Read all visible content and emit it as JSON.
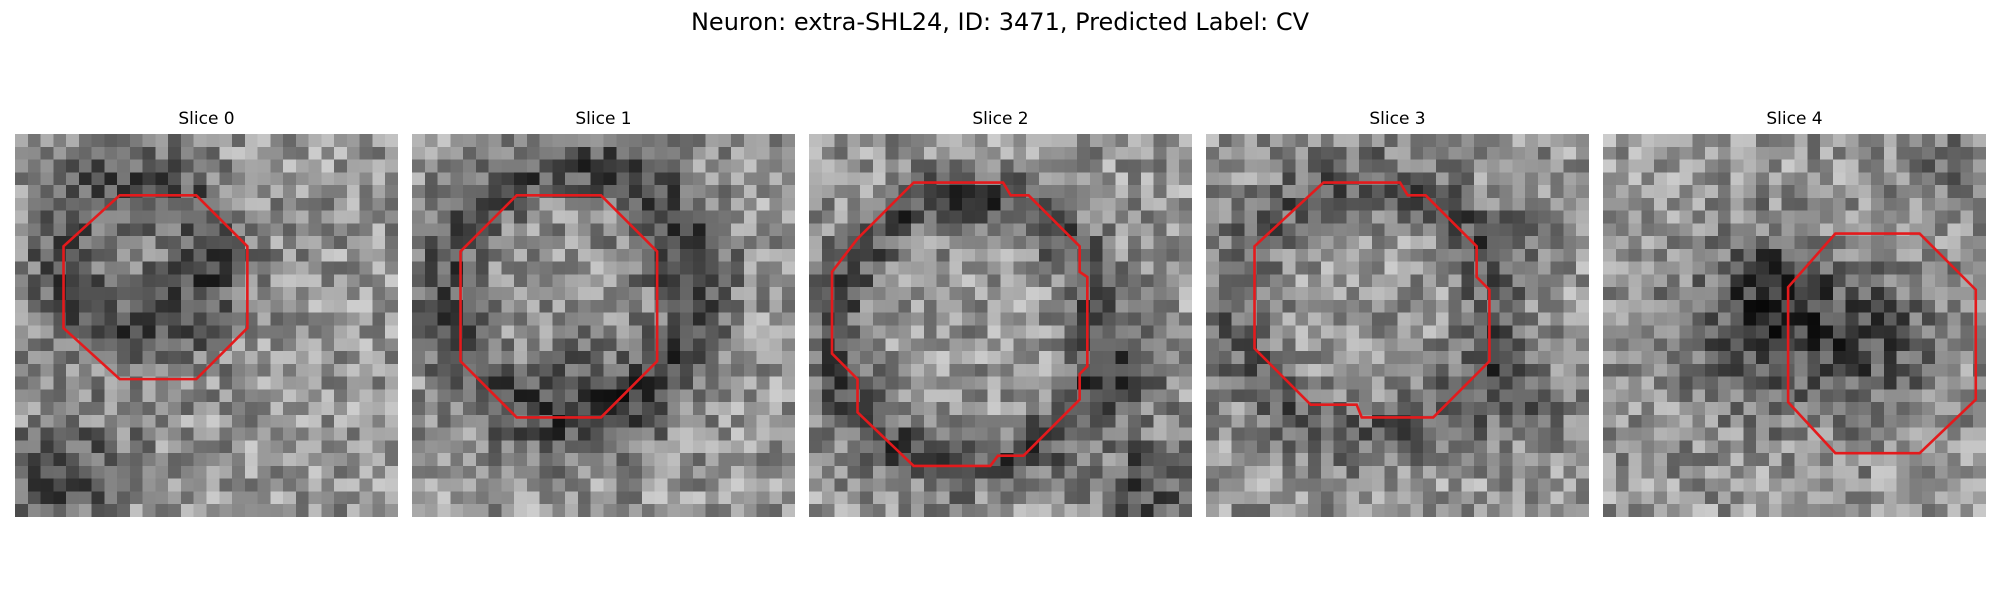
{
  "figure": {
    "title": "Neuron: extra-SHL24, ID: 3471, Predicted Label: CV"
  },
  "panels": [
    {
      "title": "Slice 0"
    },
    {
      "title": "Slice 1"
    },
    {
      "title": "Slice 2"
    },
    {
      "title": "Slice 3"
    },
    {
      "title": "Slice 4"
    }
  ],
  "colors": {
    "contour": "#e41a1c",
    "background": "#ffffff",
    "colormap": "grayscale"
  }
}
